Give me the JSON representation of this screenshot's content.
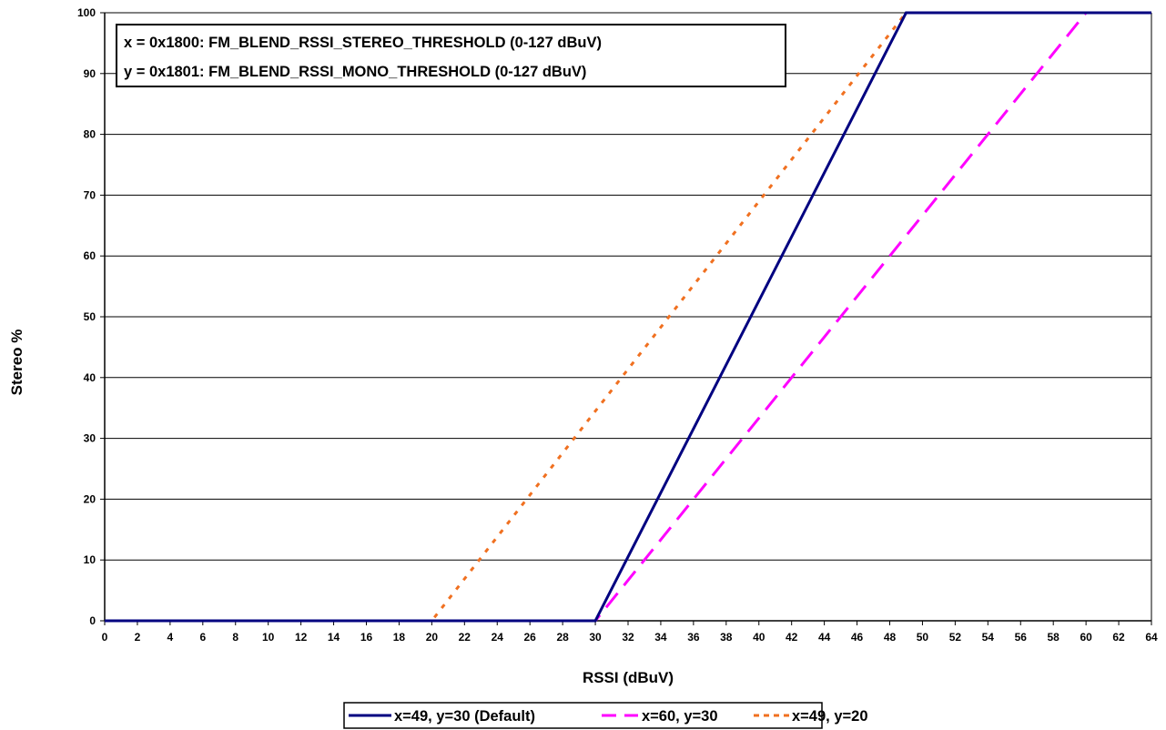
{
  "chart_data": {
    "type": "line",
    "title": "",
    "xlabel": "RSSI (dBuV)",
    "ylabel": "Stereo %",
    "xlim": [
      0,
      64
    ],
    "ylim": [
      0,
      100
    ],
    "x_ticks": [
      0,
      2,
      4,
      6,
      8,
      10,
      12,
      14,
      16,
      18,
      20,
      22,
      24,
      26,
      28,
      30,
      32,
      34,
      36,
      38,
      40,
      42,
      44,
      46,
      48,
      50,
      52,
      54,
      56,
      58,
      60,
      62,
      64
    ],
    "y_ticks": [
      0,
      10,
      20,
      30,
      40,
      50,
      60,
      70,
      80,
      90,
      100
    ],
    "grid": {
      "horizontal": true,
      "vertical": false
    },
    "legend_position": "bottom",
    "annotations": [
      "x = 0x1800: FM_BLEND_RSSI_STEREO_THRESHOLD (0-127 dBuV)",
      "y = 0x1801: FM_BLEND_RSSI_MONO_THRESHOLD (0-127 dBuV)"
    ],
    "series": [
      {
        "name": "x=49, y=30 (Default)",
        "color": "#000080",
        "style": "solid",
        "x": [
          0,
          30,
          49,
          64
        ],
        "y": [
          0,
          0,
          100,
          100
        ]
      },
      {
        "name": "x=60, y=30",
        "color": "#FF00FF",
        "style": "dashed",
        "x": [
          0,
          30,
          60,
          64
        ],
        "y": [
          0,
          0,
          100,
          100
        ]
      },
      {
        "name": "x=49, y=20",
        "color": "#F07020",
        "style": "dotted",
        "x": [
          0,
          20,
          49,
          64
        ],
        "y": [
          0,
          0,
          100,
          100
        ]
      }
    ]
  }
}
